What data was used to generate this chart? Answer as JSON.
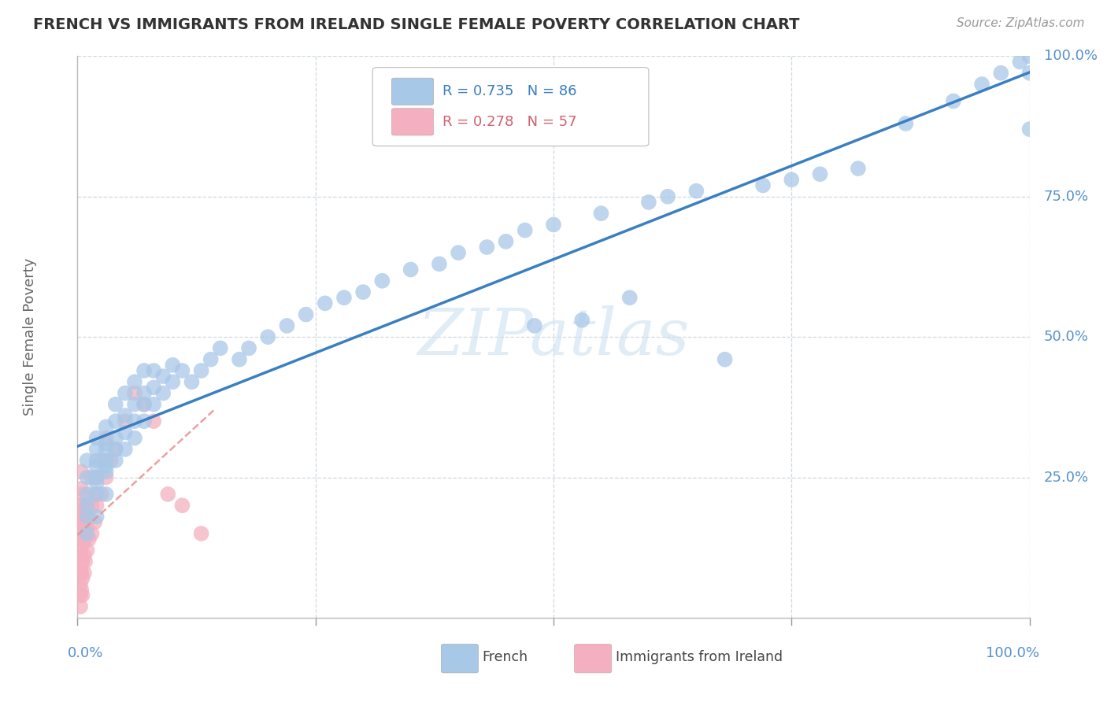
{
  "title": "FRENCH VS IMMIGRANTS FROM IRELAND SINGLE FEMALE POVERTY CORRELATION CHART",
  "source": "Source: ZipAtlas.com",
  "ylabel": "Single Female Poverty",
  "watermark": "ZIPatlas",
  "blue_R": 0.735,
  "blue_N": 86,
  "pink_R": 0.278,
  "pink_N": 57,
  "blue_color": "#a8c8e8",
  "pink_color": "#f4b0c0",
  "blue_line_color": "#3a7fc1",
  "pink_line_color": "#e89090",
  "bg_color": "#ffffff",
  "grid_color": "#d0d8e0",
  "title_color": "#333333",
  "axis_label_color": "#5590cc",
  "legend_label1": "French",
  "legend_label2": "Immigrants from Ireland",
  "blue_x": [
    0.01,
    0.01,
    0.01,
    0.01,
    0.01,
    0.01,
    0.02,
    0.02,
    0.02,
    0.02,
    0.02,
    0.02,
    0.02,
    0.02,
    0.03,
    0.03,
    0.03,
    0.03,
    0.03,
    0.03,
    0.03,
    0.04,
    0.04,
    0.04,
    0.04,
    0.04,
    0.05,
    0.05,
    0.05,
    0.05,
    0.06,
    0.06,
    0.06,
    0.06,
    0.07,
    0.07,
    0.07,
    0.07,
    0.08,
    0.08,
    0.08,
    0.09,
    0.09,
    0.1,
    0.1,
    0.11,
    0.12,
    0.13,
    0.14,
    0.15,
    0.17,
    0.18,
    0.2,
    0.22,
    0.24,
    0.26,
    0.28,
    0.3,
    0.32,
    0.35,
    0.38,
    0.4,
    0.43,
    0.45,
    0.47,
    0.48,
    0.5,
    0.53,
    0.55,
    0.58,
    0.6,
    0.62,
    0.65,
    0.68,
    0.72,
    0.75,
    0.78,
    0.82,
    0.87,
    0.92,
    0.95,
    0.97,
    0.99,
    1.0,
    1.0,
    1.0
  ],
  "blue_y": [
    0.15,
    0.18,
    0.2,
    0.22,
    0.25,
    0.28,
    0.18,
    0.22,
    0.25,
    0.28,
    0.3,
    0.32,
    0.27,
    0.24,
    0.22,
    0.26,
    0.28,
    0.31,
    0.34,
    0.3,
    0.27,
    0.28,
    0.3,
    0.32,
    0.35,
    0.38,
    0.3,
    0.33,
    0.36,
    0.4,
    0.32,
    0.35,
    0.38,
    0.42,
    0.35,
    0.38,
    0.4,
    0.44,
    0.38,
    0.41,
    0.44,
    0.4,
    0.43,
    0.42,
    0.45,
    0.44,
    0.42,
    0.44,
    0.46,
    0.48,
    0.46,
    0.48,
    0.5,
    0.52,
    0.54,
    0.56,
    0.57,
    0.58,
    0.6,
    0.62,
    0.63,
    0.65,
    0.66,
    0.67,
    0.69,
    0.52,
    0.7,
    0.53,
    0.72,
    0.57,
    0.74,
    0.75,
    0.76,
    0.46,
    0.77,
    0.78,
    0.79,
    0.8,
    0.88,
    0.92,
    0.95,
    0.97,
    0.99,
    1.0,
    0.97,
    0.87
  ],
  "pink_x": [
    0.003,
    0.003,
    0.003,
    0.003,
    0.003,
    0.003,
    0.003,
    0.003,
    0.003,
    0.003,
    0.004,
    0.004,
    0.004,
    0.004,
    0.004,
    0.004,
    0.004,
    0.004,
    0.005,
    0.005,
    0.005,
    0.005,
    0.005,
    0.005,
    0.005,
    0.007,
    0.007,
    0.007,
    0.007,
    0.008,
    0.008,
    0.008,
    0.01,
    0.01,
    0.01,
    0.012,
    0.012,
    0.015,
    0.015,
    0.015,
    0.018,
    0.018,
    0.02,
    0.02,
    0.025,
    0.025,
    0.03,
    0.03,
    0.035,
    0.04,
    0.05,
    0.06,
    0.07,
    0.08,
    0.095,
    0.11,
    0.13
  ],
  "pink_y": [
    0.02,
    0.04,
    0.06,
    0.08,
    0.1,
    0.12,
    0.14,
    0.16,
    0.18,
    0.2,
    0.05,
    0.08,
    0.11,
    0.14,
    0.17,
    0.2,
    0.23,
    0.26,
    0.04,
    0.07,
    0.1,
    0.13,
    0.16,
    0.19,
    0.22,
    0.08,
    0.11,
    0.14,
    0.18,
    0.1,
    0.14,
    0.17,
    0.12,
    0.16,
    0.2,
    0.14,
    0.18,
    0.15,
    0.2,
    0.25,
    0.17,
    0.22,
    0.2,
    0.25,
    0.22,
    0.28,
    0.25,
    0.32,
    0.28,
    0.3,
    0.35,
    0.4,
    0.38,
    0.35,
    0.22,
    0.2,
    0.15
  ]
}
